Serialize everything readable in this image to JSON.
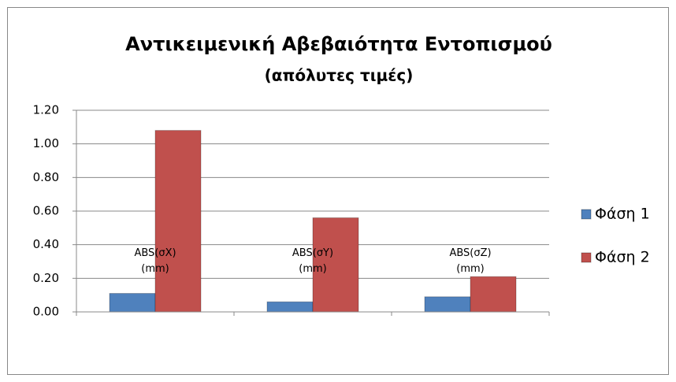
{
  "chart_data": {
    "type": "bar",
    "title": "Αντικειμενική Αβεβαιότητα Εντοπισμού",
    "subtitle": "(απόλυτες τιμές)",
    "categories": [
      "ABS(σX)\n(mm)",
      "ABS(σY)\n(mm)",
      "ABS(σZ)\n(mm)"
    ],
    "series": [
      {
        "name": "Φάση 1",
        "color": "#4f81bd",
        "values": [
          0.11,
          0.06,
          0.09
        ]
      },
      {
        "name": "Φάση 2",
        "color": "#c0504d",
        "values": [
          1.08,
          0.56,
          0.21
        ]
      }
    ],
    "ylim": [
      0,
      1.2
    ],
    "yticks": [
      {
        "value": 0,
        "label": "0.00"
      },
      {
        "value": 0.2,
        "label": "0.20"
      },
      {
        "value": 0.4,
        "label": "0.40"
      },
      {
        "value": 0.6,
        "label": "0.60"
      },
      {
        "value": 0.8,
        "label": "0.80"
      },
      {
        "value": 1.0,
        "label": "1.00"
      },
      {
        "value": 1.2,
        "label": "1.20"
      }
    ],
    "grid": true,
    "legend": "right"
  }
}
